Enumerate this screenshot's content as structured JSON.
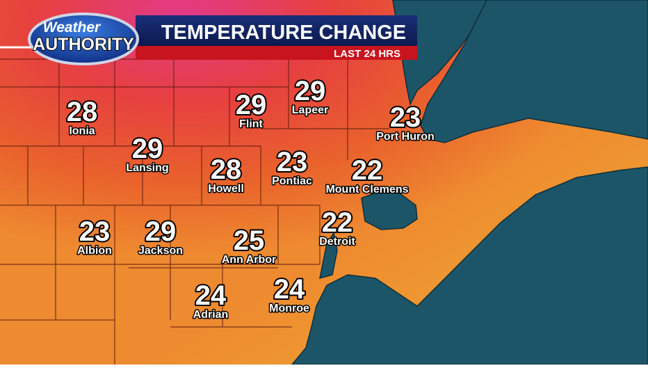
{
  "header": {
    "logo": [
      "Weather",
      "AUTHORITY"
    ],
    "title": "TEMPERATURE CHANGE",
    "subtitle": "LAST 24 HRS"
  },
  "cities": [
    {
      "name": "Ionia",
      "value": 28
    },
    {
      "name": "Lansing",
      "value": 29
    },
    {
      "name": "Flint",
      "value": 29
    },
    {
      "name": "Lapeer",
      "value": 29
    },
    {
      "name": "Port Huron",
      "value": 23
    },
    {
      "name": "Pontiac",
      "value": 23
    },
    {
      "name": "Howell",
      "value": 28
    },
    {
      "name": "Mount Clemens",
      "value": 22
    },
    {
      "name": "Albion",
      "value": 23
    },
    {
      "name": "Jackson",
      "value": 29
    },
    {
      "name": "Ann Arbor",
      "value": 25
    },
    {
      "name": "Detroit",
      "value": 22
    },
    {
      "name": "Adrian",
      "value": 24
    },
    {
      "name": "Monroe",
      "value": 24
    }
  ]
}
